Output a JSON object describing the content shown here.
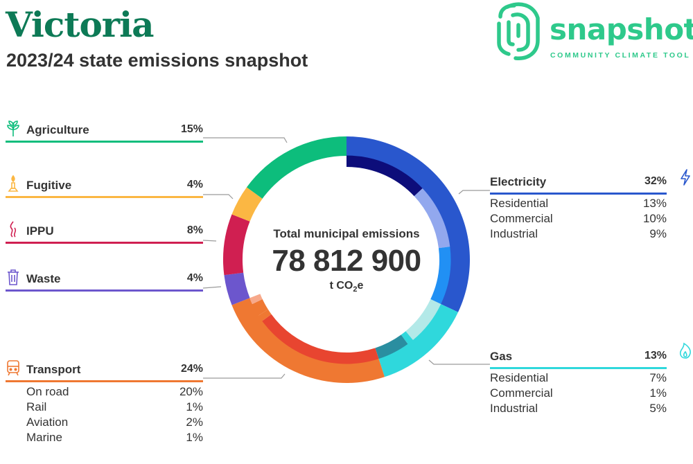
{
  "header": {
    "title": "Victoria",
    "subtitle": "2023/24 state emissions snapshot"
  },
  "logo": {
    "word": "snapshot",
    "tagline": "COMMUNITY CLIMATE TOOL",
    "color": "#2ec98b"
  },
  "center": {
    "label": "Total municipal emissions",
    "total": "78 812 900",
    "unit_main": "t CO",
    "unit_sub": "2",
    "unit_tail": "e"
  },
  "categories": {
    "agriculture": {
      "label": "Agriculture",
      "pct": "15%",
      "color": "#0dbd7c",
      "icon": "plant-icon"
    },
    "fugitive": {
      "label": "Fugitive",
      "pct": "4%",
      "color": "#fbb743",
      "icon": "flare-icon"
    },
    "ippu": {
      "label": "IPPU",
      "pct": "8%",
      "color": "#d01f51",
      "icon": "smoke-icon"
    },
    "waste": {
      "label": "Waste",
      "pct": "4%",
      "color": "#6c56cd",
      "icon": "bin-icon"
    },
    "transport": {
      "label": "Transport",
      "pct": "24%",
      "color": "#ef7832",
      "icon": "train-icon",
      "items": [
        {
          "label": "On road",
          "pct": "20%"
        },
        {
          "label": "Rail",
          "pct": "1%"
        },
        {
          "label": "Aviation",
          "pct": "2%"
        },
        {
          "label": "Marine",
          "pct": "1%"
        }
      ]
    },
    "electricity": {
      "label": "Electricity",
      "pct": "32%",
      "color": "#2957cd",
      "icon": "lightning-icon",
      "items": [
        {
          "label": "Residential",
          "pct": "13%"
        },
        {
          "label": "Commercial",
          "pct": "10%"
        },
        {
          "label": "Industrial",
          "pct": "9%"
        }
      ]
    },
    "gas": {
      "label": "Gas",
      "pct": "13%",
      "color": "#2fd8dc",
      "icon": "flame-icon",
      "items": [
        {
          "label": "Residential",
          "pct": "7%"
        },
        {
          "label": "Commercial",
          "pct": "1%"
        },
        {
          "label": "Industrial",
          "pct": "5%"
        }
      ]
    }
  },
  "chart_data": {
    "type": "pie",
    "style": "donut",
    "slices": [
      {
        "name": "Electricity",
        "value": 32,
        "color": "#2957cd",
        "inner": [
          {
            "name": "Residential",
            "value": 13,
            "color": "#0d0d7a"
          },
          {
            "name": "Commercial",
            "value": 10,
            "color": "#92a8ee"
          },
          {
            "name": "Industrial",
            "value": 9,
            "color": "#2190f4"
          }
        ]
      },
      {
        "name": "Gas",
        "value": 13,
        "color": "#2fd8dc",
        "inner": [
          {
            "name": "Residential",
            "value": 7,
            "color": "#b3e9e8"
          },
          {
            "name": "Commercial",
            "value": 1,
            "color": "#2fd8dc"
          },
          {
            "name": "Industrial",
            "value": 5,
            "color": "#2a8ea0"
          }
        ]
      },
      {
        "name": "Transport",
        "value": 24,
        "color": "#ef7832",
        "inner": [
          {
            "name": "On road",
            "value": 20,
            "color": "#e84530"
          },
          {
            "name": "Rail",
            "value": 1,
            "color": "#ef7832"
          },
          {
            "name": "Aviation",
            "value": 2,
            "color": "#ef7832"
          },
          {
            "name": "Marine",
            "value": 1,
            "color": "#f7a98b"
          }
        ]
      },
      {
        "name": "Waste",
        "value": 4,
        "color": "#6c56cd"
      },
      {
        "name": "IPPU",
        "value": 8,
        "color": "#d01f51"
      },
      {
        "name": "Fugitive",
        "value": 4,
        "color": "#fbb743"
      },
      {
        "name": "Agriculture",
        "value": 15,
        "color": "#0dbd7c"
      }
    ],
    "total": 100
  }
}
